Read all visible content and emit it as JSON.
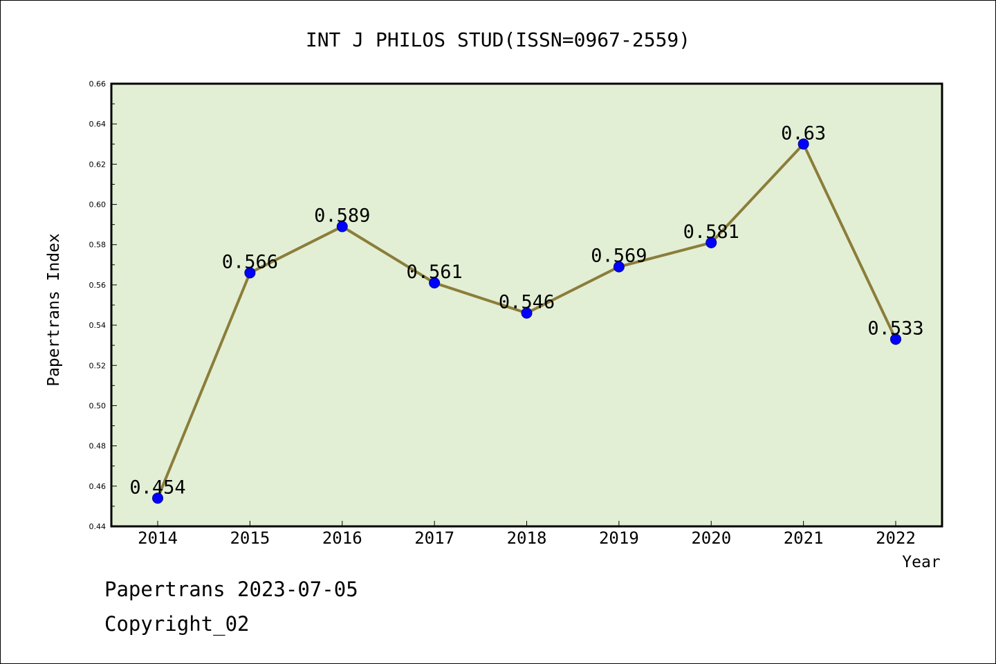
{
  "chart_data": {
    "type": "line",
    "title": "INT J PHILOS STUD(ISSN=0967-2559)",
    "xlabel": "Year",
    "ylabel": "Papertrans Index",
    "categories": [
      "2014",
      "2015",
      "2016",
      "2017",
      "2018",
      "2019",
      "2020",
      "2021",
      "2022"
    ],
    "values": [
      0.454,
      0.566,
      0.589,
      0.561,
      0.546,
      0.569,
      0.581,
      0.63,
      0.533
    ],
    "data_labels": [
      "0.454",
      "0.566",
      "0.589",
      "0.561",
      "0.546",
      "0.569",
      "0.581",
      "0.63",
      "0.533"
    ],
    "ylim": [
      0.44,
      0.66
    ],
    "yticks": [
      "0.44",
      "0.46",
      "0.48",
      "0.50",
      "0.52",
      "0.54",
      "0.56",
      "0.58",
      "0.60",
      "0.62",
      "0.64",
      "0.66"
    ],
    "grid": false,
    "colors": {
      "plot_background": "#e2efd5",
      "line": "#8b7d3a",
      "marker": "#0000ff"
    }
  },
  "footer": {
    "date_line": "Papertrans 2023-07-05",
    "copyright_line": "Copyright_02"
  }
}
